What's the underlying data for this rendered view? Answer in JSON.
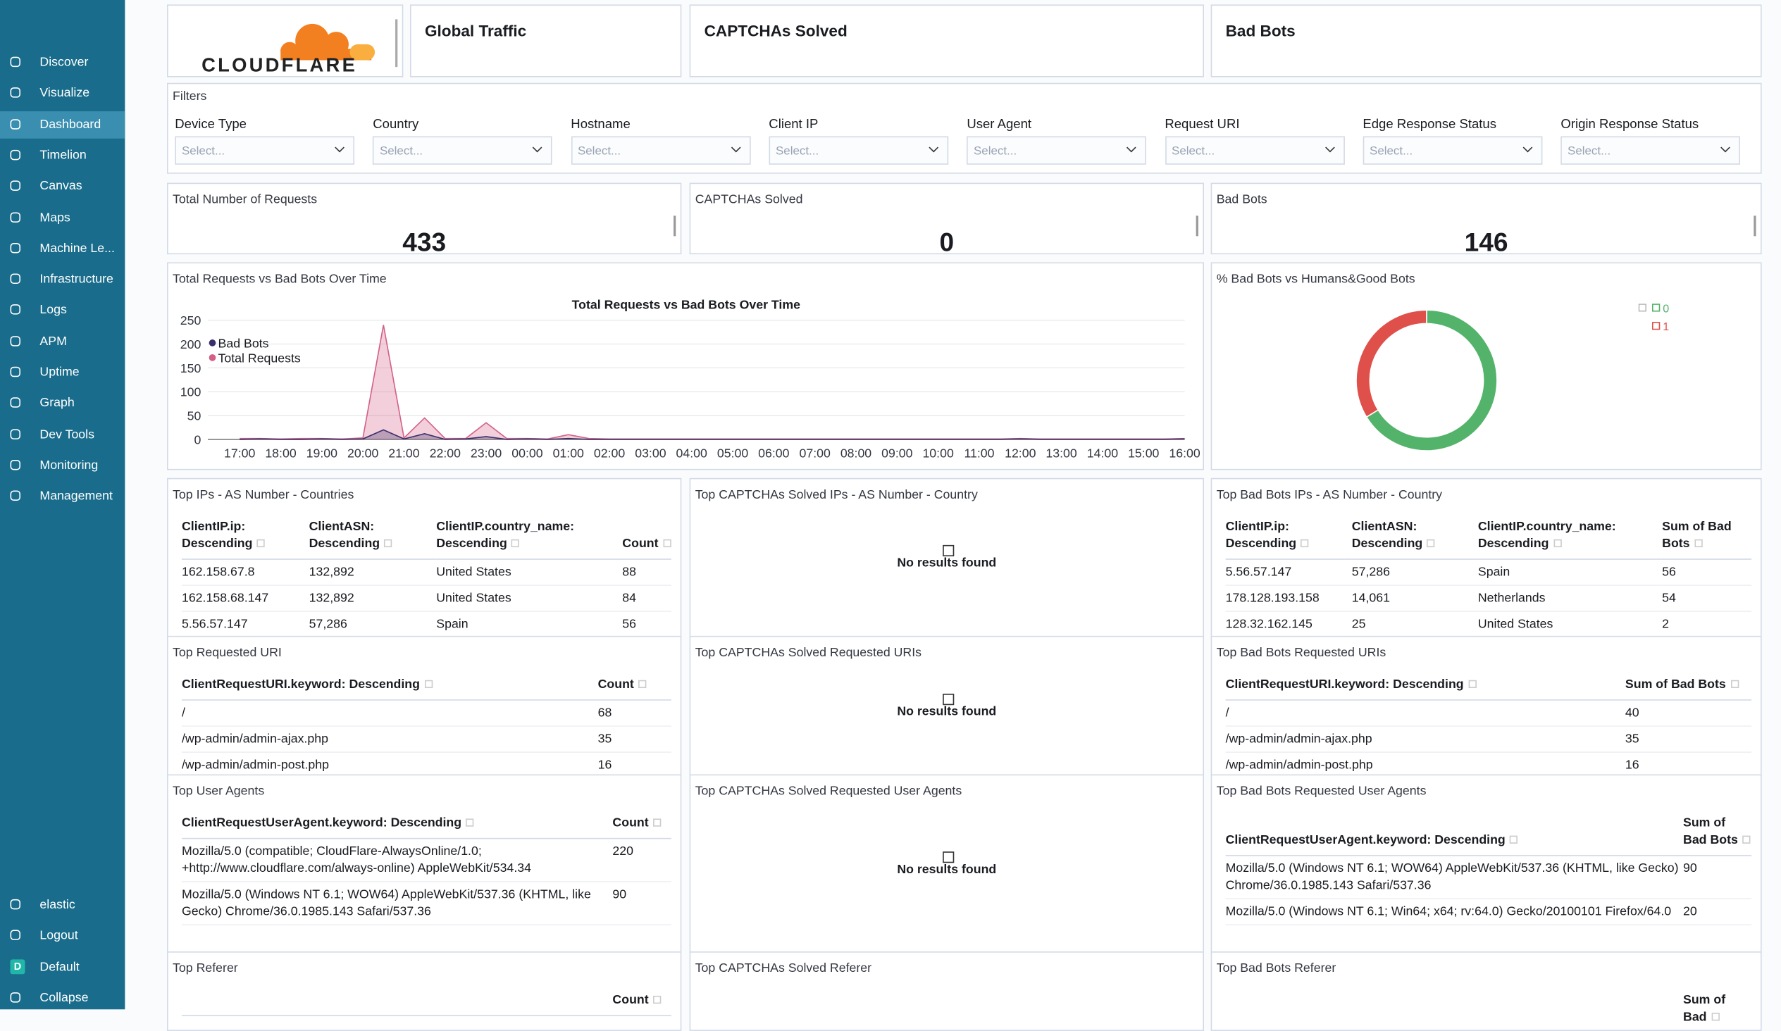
{
  "sidebar": {
    "items": [
      "Discover",
      "Visualize",
      "Dashboard",
      "Timelion",
      "Canvas",
      "Maps",
      "Machine Le...",
      "Infrastructure",
      "Logs",
      "APM",
      "Uptime",
      "Graph",
      "Dev Tools",
      "Monitoring",
      "Management"
    ],
    "active": 2,
    "footer_items": [
      "elastic",
      "Logout",
      "Default",
      "Collapse"
    ],
    "space_badge": "D"
  },
  "header": {
    "logo_text": "CLOUDFLARE",
    "titles": [
      "Global Traffic",
      "CAPTCHAs Solved",
      "Bad Bots"
    ]
  },
  "filters": {
    "title": "Filters",
    "controls": [
      {
        "label": "Device Type",
        "placeholder": "Select..."
      },
      {
        "label": "Country",
        "placeholder": "Select..."
      },
      {
        "label": "Hostname",
        "placeholder": "Select..."
      },
      {
        "label": "Client IP",
        "placeholder": "Select..."
      },
      {
        "label": "User Agent",
        "placeholder": "Select..."
      },
      {
        "label": "Request URI",
        "placeholder": "Select..."
      },
      {
        "label": "Edge Response Status",
        "placeholder": "Select..."
      },
      {
        "label": "Origin Response Status",
        "placeholder": "Select..."
      }
    ]
  },
  "metrics": [
    {
      "title": "Total Number of Requests",
      "value": "433"
    },
    {
      "title": "CAPTCHAs Solved",
      "value": "0"
    },
    {
      "title": "Bad Bots",
      "value": "146"
    }
  ],
  "line_panel": {
    "title": "Total Requests vs Bad Bots Over Time",
    "chart": {
      "type": "area",
      "title": "Total Requests vs Bad Bots Over Time",
      "categories": [
        "17:00",
        null,
        "18:00",
        null,
        "19:00",
        null,
        "20:00",
        null,
        "21:00",
        null,
        "22:00",
        null,
        "23:00",
        null,
        "00:00",
        null,
        "01:00",
        null,
        "02:00",
        null,
        "03:00",
        null,
        "04:00",
        null,
        "05:00",
        null,
        "06:00",
        null,
        "07:00",
        null,
        "08:00",
        null,
        "09:00",
        null,
        "10:00",
        null,
        "11:00",
        null,
        "12:00",
        null,
        "13:00",
        null,
        "14:00",
        null,
        "15:00",
        null,
        "16:00"
      ],
      "series": [
        {
          "name": "Bad Bots",
          "color": "#3b2f6b",
          "values": [
            0,
            1,
            0,
            0,
            1,
            0,
            1,
            20,
            1,
            12,
            0,
            1,
            6,
            0,
            1,
            0,
            2,
            0,
            0,
            0,
            0,
            0,
            0,
            0,
            0,
            0,
            0,
            0,
            0,
            0,
            0,
            0,
            0,
            0,
            0,
            0,
            0,
            0,
            1,
            0,
            0,
            0,
            0,
            0,
            0,
            0,
            1
          ]
        },
        {
          "name": "Total Requests",
          "color": "#d36086",
          "values": [
            2,
            2,
            1,
            2,
            2,
            1,
            3,
            240,
            3,
            45,
            2,
            2,
            35,
            2,
            2,
            1,
            10,
            2,
            1,
            1,
            1,
            1,
            1,
            1,
            1,
            1,
            1,
            1,
            1,
            1,
            1,
            1,
            1,
            1,
            1,
            1,
            1,
            1,
            2,
            1,
            1,
            1,
            1,
            1,
            1,
            1,
            2
          ]
        }
      ],
      "ylim": [
        0,
        250
      ],
      "yticks": [
        0,
        50,
        100,
        150,
        200,
        250
      ],
      "grid": true
    }
  },
  "donut_panel": {
    "title": "% Bad Bots vs Humans&Good Bots",
    "chart": {
      "type": "donut",
      "categories": [
        "0",
        "1"
      ],
      "values": [
        287,
        146
      ],
      "colors": [
        "#54b36b",
        "#e0504a"
      ]
    }
  },
  "panels": [
    {
      "title": "Top IPs - AS Number - Countries",
      "table": {
        "headers": [
          "ClientIP.ip: Descending",
          "ClientASN: Descending",
          "ClientIP.country_name: Descending",
          "Count"
        ],
        "rows": [
          [
            "162.158.67.8",
            "132,892",
            "United States",
            "88"
          ],
          [
            "162.158.68.147",
            "132,892",
            "United States",
            "84"
          ],
          [
            "5.56.57.147",
            "57,286",
            "Spain",
            "56"
          ]
        ]
      }
    },
    {
      "title": "Top CAPTCHAs Solved IPs - AS Number - Country",
      "empty": "No results found"
    },
    {
      "title": "Top Bad Bots IPs - AS Number - Country",
      "table": {
        "headers": [
          "ClientIP.ip: Descending",
          "ClientASN: Descending",
          "ClientIP.country_name: Descending",
          "Sum of Bad Bots"
        ],
        "rows": [
          [
            "5.56.57.147",
            "57,286",
            "Spain",
            "56"
          ],
          [
            "178.128.193.158",
            "14,061",
            "Netherlands",
            "54"
          ],
          [
            "128.32.162.145",
            "25",
            "United States",
            "2"
          ]
        ]
      }
    },
    {
      "title": "Top Requested URI",
      "table": {
        "headers": [
          "ClientRequestURI.keyword: Descending",
          "Count"
        ],
        "rows": [
          [
            "/",
            "68"
          ],
          [
            "/wp-admin/admin-ajax.php",
            "35"
          ],
          [
            "/wp-admin/admin-post.php",
            "16"
          ]
        ]
      }
    },
    {
      "title": "Top CAPTCHAs Solved Requested URIs",
      "empty": "No results found"
    },
    {
      "title": "Top Bad Bots Requested URIs",
      "table": {
        "headers": [
          "ClientRequestURI.keyword: Descending",
          "Sum of Bad Bots"
        ],
        "rows": [
          [
            "/",
            "40"
          ],
          [
            "/wp-admin/admin-ajax.php",
            "35"
          ],
          [
            "/wp-admin/admin-post.php",
            "16"
          ]
        ]
      }
    },
    {
      "title": "Top User Agents",
      "table": {
        "headers": [
          "ClientRequestUserAgent.keyword: Descending",
          "Count"
        ],
        "rows": [
          [
            "Mozilla/5.0 (compatible; CloudFlare-AlwaysOnline/1.0; +http://www.cloudflare.com/always-online) AppleWebKit/534.34",
            "220"
          ],
          [
            "Mozilla/5.0 (Windows NT 6.1; WOW64) AppleWebKit/537.36 (KHTML, like Gecko) Chrome/36.0.1985.143 Safari/537.36",
            "90"
          ]
        ]
      }
    },
    {
      "title": "Top CAPTCHAs Solved Requested User Agents",
      "empty": "No results found"
    },
    {
      "title": "Top Bad Bots Requested User Agents",
      "table": {
        "headers": [
          "ClientRequestUserAgent.keyword: Descending",
          "Sum of Bad Bots"
        ],
        "rows": [
          [
            "Mozilla/5.0 (Windows NT 6.1; WOW64) AppleWebKit/537.36 (KHTML, like Gecko) Chrome/36.0.1985.143 Safari/537.36",
            "90"
          ],
          [
            "Mozilla/5.0 (Windows NT 6.1; Win64; x64; rv:64.0) Gecko/20100101 Firefox/64.0",
            "20"
          ]
        ]
      }
    },
    {
      "title": "Top Referer",
      "table": {
        "headers": [
          "",
          "Count"
        ],
        "rows": []
      }
    },
    {
      "title": "Top CAPTCHAs Solved Referer"
    },
    {
      "title": "Top Bad Bots Referer",
      "table": {
        "headers": [
          "",
          "Sum of Bad"
        ],
        "rows": []
      }
    }
  ]
}
